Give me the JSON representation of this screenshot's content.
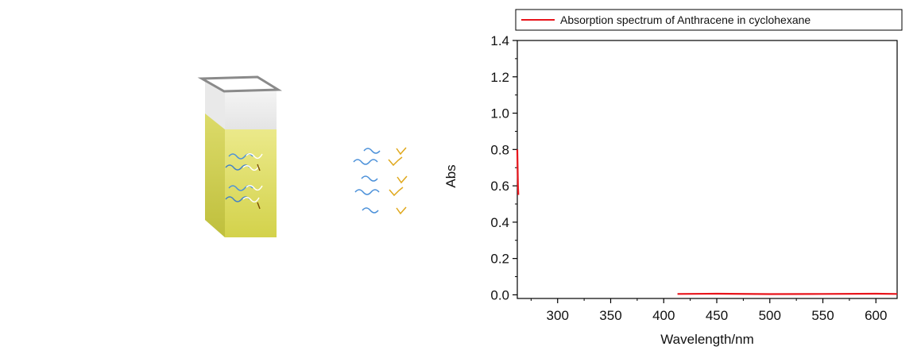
{
  "chart_data": {
    "type": "line",
    "legend": {
      "label": "Absorption spectrum of Anthracene in cyclohexane",
      "placement": "top",
      "color": "#e8141b"
    },
    "xlabel": "Wavelength/nm",
    "ylabel": "Abs",
    "xlim": [
      262,
      620
    ],
    "ylim": [
      -0.02,
      1.4
    ],
    "x_ticks": [
      300,
      350,
      400,
      450,
      500,
      550,
      600
    ],
    "y_ticks": [
      "0.0",
      "0.2",
      "0.4",
      "0.6",
      "0.8",
      "1.0",
      "1.2",
      "1.4"
    ],
    "x_minor_step": 25,
    "y_minor_step": 0.1,
    "grid": false,
    "series": [
      {
        "name": "Absorption spectrum of Anthracene in cyclohexane",
        "color": "#e8141b",
        "segments": [
          {
            "x": [
              262,
              262.3,
              262.6,
              263
            ],
            "y": [
              0.8,
              0.7,
              0.6,
              0.55
            ]
          },
          {
            "x": [
              413,
              450,
              500,
              550,
              600,
              620
            ],
            "y": [
              0.005,
              0.006,
              0.004,
              0.005,
              0.006,
              0.005
            ]
          }
        ]
      }
    ]
  },
  "illustration": {
    "liquid_color": "#d9db57",
    "wave_blue": "#4a90d9",
    "wave_gold": "#e0a81c"
  }
}
